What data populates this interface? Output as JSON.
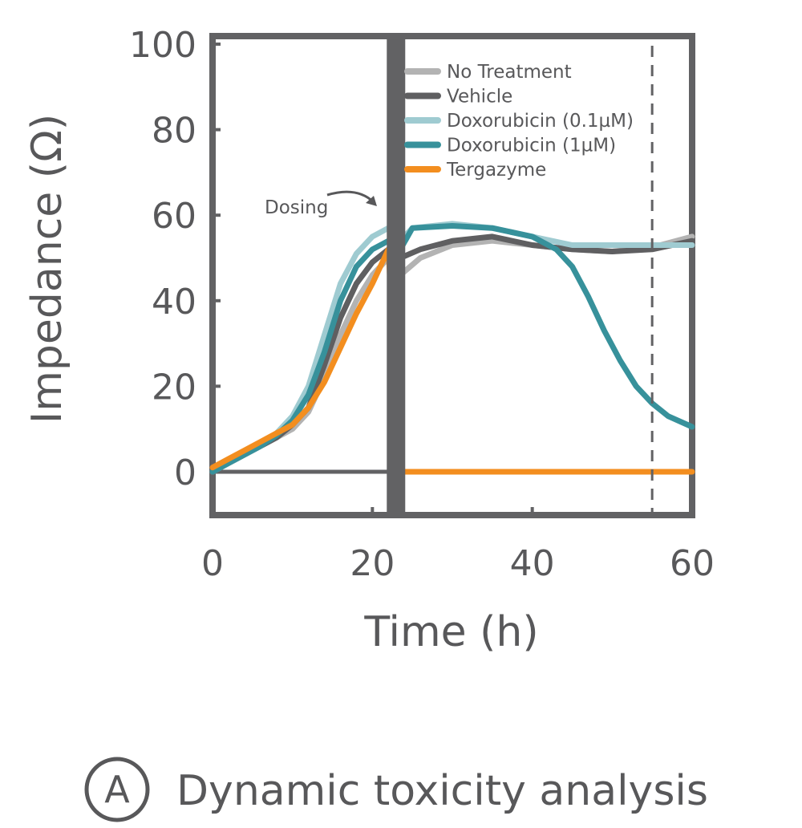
{
  "chart_data": {
    "type": "line",
    "xlabel": "Time (h)",
    "ylabel": "Impedance (Ω)",
    "xlim": [
      0,
      60
    ],
    "ylim": [
      -10,
      100
    ],
    "xticks": [
      0,
      20,
      40,
      60
    ],
    "yticks": [
      0,
      20,
      40,
      60,
      80,
      100
    ],
    "grid": false,
    "legend_position": "top-right",
    "series": [
      {
        "name": "No Treatment",
        "color": "#b3b3b3",
        "x": [
          0,
          2,
          4,
          6,
          8,
          10,
          12,
          14,
          16,
          18,
          20,
          22,
          23.5,
          26,
          30,
          35,
          40,
          45,
          50,
          55,
          60
        ],
        "y": [
          0,
          2,
          4,
          6,
          8,
          10,
          14,
          22,
          32,
          40,
          46,
          50,
          46,
          50,
          53,
          54,
          53,
          52,
          51.5,
          52.5,
          55
        ]
      },
      {
        "name": "Vehicle",
        "color": "#5f5f61",
        "x": [
          0,
          2,
          4,
          6,
          8,
          10,
          12,
          14,
          16,
          18,
          20,
          22,
          23.5,
          26,
          30,
          35,
          40,
          45,
          50,
          55,
          60
        ],
        "y": [
          0,
          2,
          4,
          6,
          8,
          11,
          15,
          25,
          36,
          44,
          49,
          52,
          50,
          52,
          54,
          55,
          53,
          52,
          51.5,
          52,
          54
        ]
      },
      {
        "name": "Doxorubicin (0.1µM)",
        "color": "#9fcbd1",
        "x": [
          0,
          2,
          4,
          6,
          8,
          10,
          12,
          14,
          16,
          18,
          20,
          22,
          23.5,
          25,
          30,
          35,
          40,
          45,
          50,
          55,
          60
        ],
        "y": [
          0,
          2,
          4,
          6,
          9,
          13,
          20,
          32,
          44,
          51,
          55,
          57,
          54,
          57,
          58,
          57,
          55,
          53,
          53,
          53,
          53
        ]
      },
      {
        "name": "Doxorubicin (1µM)",
        "color": "#37919b",
        "x": [
          0,
          2,
          4,
          6,
          8,
          10,
          12,
          14,
          16,
          18,
          20,
          22,
          23.5,
          25,
          30,
          35,
          40,
          43,
          45,
          47,
          49,
          51,
          53,
          55,
          57,
          60
        ],
        "y": [
          0,
          2,
          4,
          6,
          8.5,
          12,
          18,
          28,
          40,
          48,
          52,
          54,
          52,
          57,
          57.5,
          57,
          55,
          52,
          48,
          41,
          33,
          26,
          20,
          16,
          13,
          10.5
        ]
      },
      {
        "name": "Tergazyme",
        "color": "#f38e1f",
        "x": [
          0,
          2,
          4,
          6,
          8,
          10,
          12,
          14,
          16,
          18,
          20,
          22,
          23.5,
          25,
          30,
          40,
          50,
          60
        ],
        "y": [
          1,
          3,
          5,
          7,
          9,
          11,
          15,
          21,
          29,
          37,
          44,
          52,
          0,
          0,
          0,
          0,
          0,
          0
        ]
      }
    ],
    "annotations": [
      {
        "text": "Dosing",
        "x": 22
      }
    ],
    "reference_lines": [
      {
        "style": "dashed",
        "x": 55
      }
    ]
  },
  "caption": {
    "letter": "A",
    "text": "Dynamic toxicity analysis"
  }
}
